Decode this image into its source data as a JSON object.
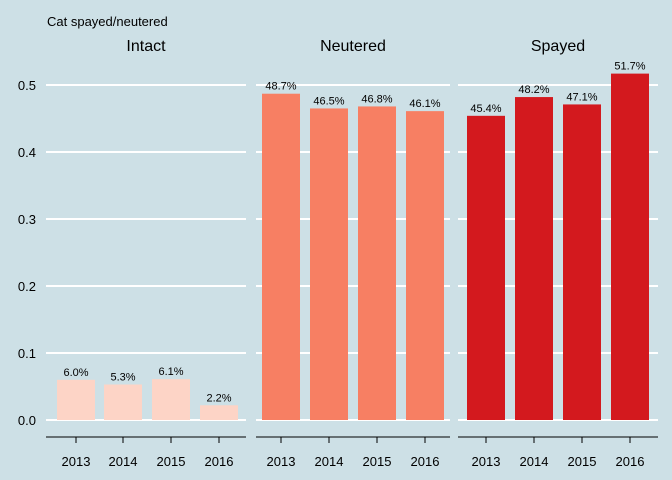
{
  "chart_data": {
    "type": "bar",
    "title": "Cat spayed/neutered",
    "xlabel": "",
    "ylabel": "",
    "ylim": [
      0,
      0.52
    ],
    "yticks": [
      "0.0",
      "0.1",
      "0.2",
      "0.3",
      "0.4",
      "0.5"
    ],
    "grid": true,
    "categories": [
      "2013",
      "2014",
      "2015",
      "2016"
    ],
    "series": [
      {
        "name": "Intact",
        "color": "#fdd4c6",
        "values": [
          0.06,
          0.053,
          0.061,
          0.022
        ],
        "labels": [
          "6.0%",
          "5.3%",
          "6.1%",
          "2.2%"
        ]
      },
      {
        "name": "Neutered",
        "color": "#f77f63",
        "values": [
          0.487,
          0.465,
          0.468,
          0.461
        ],
        "labels": [
          "48.7%",
          "46.5%",
          "46.8%",
          "46.1%"
        ]
      },
      {
        "name": "Spayed",
        "color": "#d3191e",
        "values": [
          0.454,
          0.482,
          0.471,
          0.517
        ],
        "labels": [
          "45.4%",
          "48.2%",
          "47.1%",
          "51.7%"
        ]
      }
    ]
  }
}
